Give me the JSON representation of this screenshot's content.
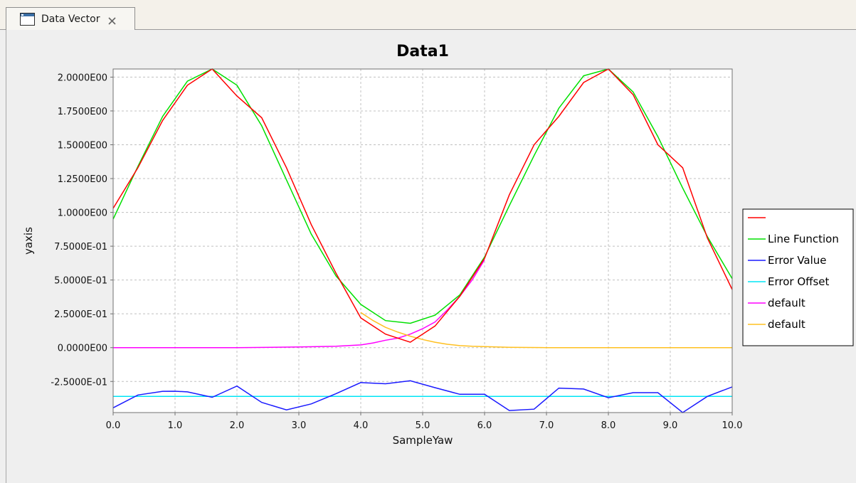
{
  "tab": {
    "title": "Data Vector",
    "icon": "window-icon",
    "close_icon": "close-icon"
  },
  "colors": {
    "background": "#efefef",
    "plot_background": "#ffffff",
    "grid": "#c0c0c0"
  },
  "chart_data": {
    "type": "line",
    "title": "Data1",
    "xlabel": "SampleYaw",
    "ylabel": "yaxis",
    "xlim": [
      0,
      10
    ],
    "ylim": [
      -0.48,
      2.06
    ],
    "grid": true,
    "legend_position": "right",
    "x_ticks": [
      0,
      1,
      2,
      3,
      4,
      5,
      6,
      7,
      8,
      9,
      10
    ],
    "x_tick_labels": [
      "0.0",
      "1.0",
      "2.0",
      "3.0",
      "4.0",
      "5.0",
      "6.0",
      "7.0",
      "8.0",
      "9.0",
      "10.0"
    ],
    "y_ticks": [
      -0.25,
      0,
      0.25,
      0.5,
      0.75,
      1.0,
      1.25,
      1.5,
      1.75,
      2.0
    ],
    "y_tick_labels": [
      "-2.5000E-01",
      "0.0000E00",
      "2.5000E-01",
      "5.0000E-01",
      "7.5000E-01",
      "1.0000E00",
      "1.2500E00",
      "1.5000E00",
      "1.7500E00",
      "2.0000E00"
    ],
    "series": [
      {
        "name": "",
        "color": "#ff0000",
        "x": [
          0,
          0.4,
          0.8,
          1.2,
          1.6,
          2.0,
          2.4,
          2.8,
          3.2,
          3.6,
          4.0,
          4.4,
          4.8,
          5.2,
          5.6,
          6.0,
          6.4,
          6.8,
          7.2,
          7.6,
          8.0,
          8.4,
          8.8,
          9.2,
          9.6,
          10.0
        ],
        "y": [
          1.03,
          1.33,
          1.68,
          1.94,
          2.06,
          1.86,
          1.7,
          1.33,
          0.91,
          0.55,
          0.22,
          0.1,
          0.04,
          0.16,
          0.38,
          0.66,
          1.13,
          1.5,
          1.71,
          1.96,
          2.06,
          1.87,
          1.5,
          1.33,
          0.81,
          0.43
        ]
      },
      {
        "name": "Line Function",
        "color": "#00e000",
        "x": [
          0,
          0.4,
          0.8,
          1.2,
          1.6,
          2.0,
          2.4,
          2.8,
          3.2,
          3.6,
          4.0,
          4.4,
          4.8,
          5.2,
          5.6,
          6.0,
          6.4,
          6.8,
          7.2,
          7.6,
          8.0,
          8.4,
          8.8,
          9.2,
          9.6,
          10.0
        ],
        "y": [
          0.95,
          1.34,
          1.71,
          1.97,
          2.06,
          1.94,
          1.64,
          1.24,
          0.84,
          0.53,
          0.32,
          0.2,
          0.18,
          0.24,
          0.39,
          0.67,
          1.05,
          1.42,
          1.77,
          2.01,
          2.06,
          1.89,
          1.56,
          1.18,
          0.82,
          0.51
        ]
      },
      {
        "name": "Error Value",
        "color": "#1a1aff",
        "x": [
          0,
          0.4,
          0.8,
          1.0,
          1.2,
          1.6,
          2.0,
          2.4,
          2.8,
          3.2,
          3.6,
          4.0,
          4.4,
          4.8,
          5.2,
          5.6,
          6.0,
          6.4,
          6.8,
          7.2,
          7.6,
          8.0,
          8.4,
          8.8,
          9.2,
          9.6,
          10.0
        ],
        "y": [
          -0.445,
          -0.35,
          -0.323,
          -0.322,
          -0.327,
          -0.367,
          -0.284,
          -0.405,
          -0.46,
          -0.416,
          -0.34,
          -0.258,
          -0.267,
          -0.245,
          -0.296,
          -0.345,
          -0.345,
          -0.465,
          -0.455,
          -0.299,
          -0.306,
          -0.37,
          -0.333,
          -0.333,
          -0.48,
          -0.36,
          -0.29
        ]
      },
      {
        "name": "Error Offset",
        "color": "#00e5f5",
        "x": [
          0,
          10
        ],
        "y": [
          -0.36,
          -0.36
        ]
      },
      {
        "name": "default",
        "color": "#ff00ff",
        "x": [
          0,
          1,
          2,
          3,
          3.6,
          4.0,
          4.2,
          4.4,
          4.6,
          4.8,
          5.0,
          5.2,
          5.4,
          5.6,
          5.8,
          6.0
        ],
        "y": [
          0,
          0,
          0,
          0.005,
          0.01,
          0.02,
          0.035,
          0.055,
          0.07,
          0.1,
          0.14,
          0.19,
          0.28,
          0.38,
          0.5,
          0.65
        ]
      },
      {
        "name": "default",
        "color": "#ffc020",
        "x": [
          4.0,
          4.2,
          4.4,
          4.6,
          4.8,
          5.0,
          5.2,
          5.4,
          5.6,
          5.8,
          6.0,
          6.2,
          6.4,
          7.0,
          8.0,
          9.0,
          10.0
        ],
        "y": [
          0.26,
          0.2,
          0.15,
          0.115,
          0.085,
          0.06,
          0.04,
          0.025,
          0.015,
          0.01,
          0.008,
          0.005,
          0.002,
          0,
          0,
          0,
          0
        ]
      }
    ]
  }
}
